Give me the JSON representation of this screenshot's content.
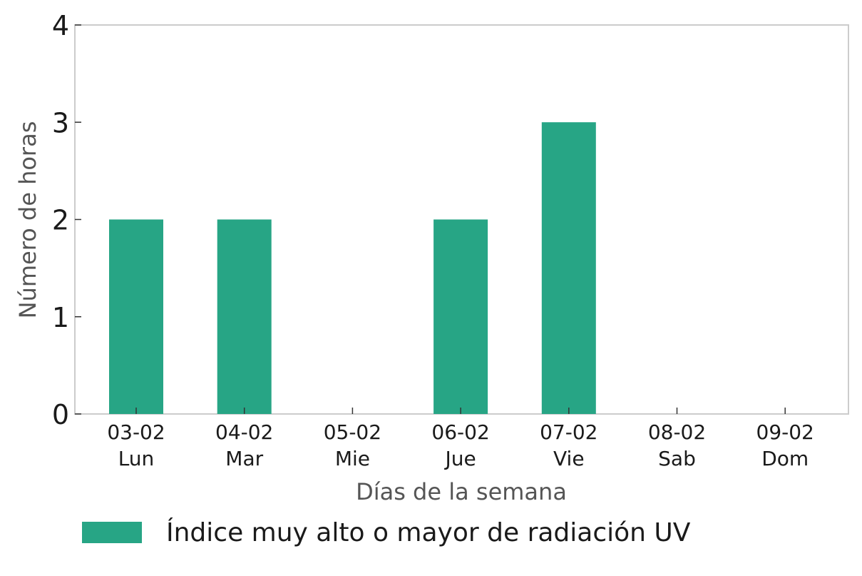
{
  "chart_data": {
    "type": "bar",
    "categories": [
      "03-02",
      "04-02",
      "05-02",
      "06-02",
      "07-02",
      "08-02",
      "09-02"
    ],
    "category_days": [
      "Lun",
      "Mar",
      "Mie",
      "Jue",
      "Vie",
      "Sab",
      "Dom"
    ],
    "series": [
      {
        "name": "Índice muy alto o mayor de radiación UV",
        "values": [
          2,
          2,
          0,
          2,
          3,
          0,
          0
        ],
        "color": "#27a585"
      }
    ],
    "xlabel": "Días de la semana",
    "ylabel": "Número de horas",
    "ylim": [
      0,
      4
    ],
    "yticks": [
      0,
      1,
      2,
      3,
      4
    ],
    "grid": false,
    "legend_position": "bottom-left"
  }
}
